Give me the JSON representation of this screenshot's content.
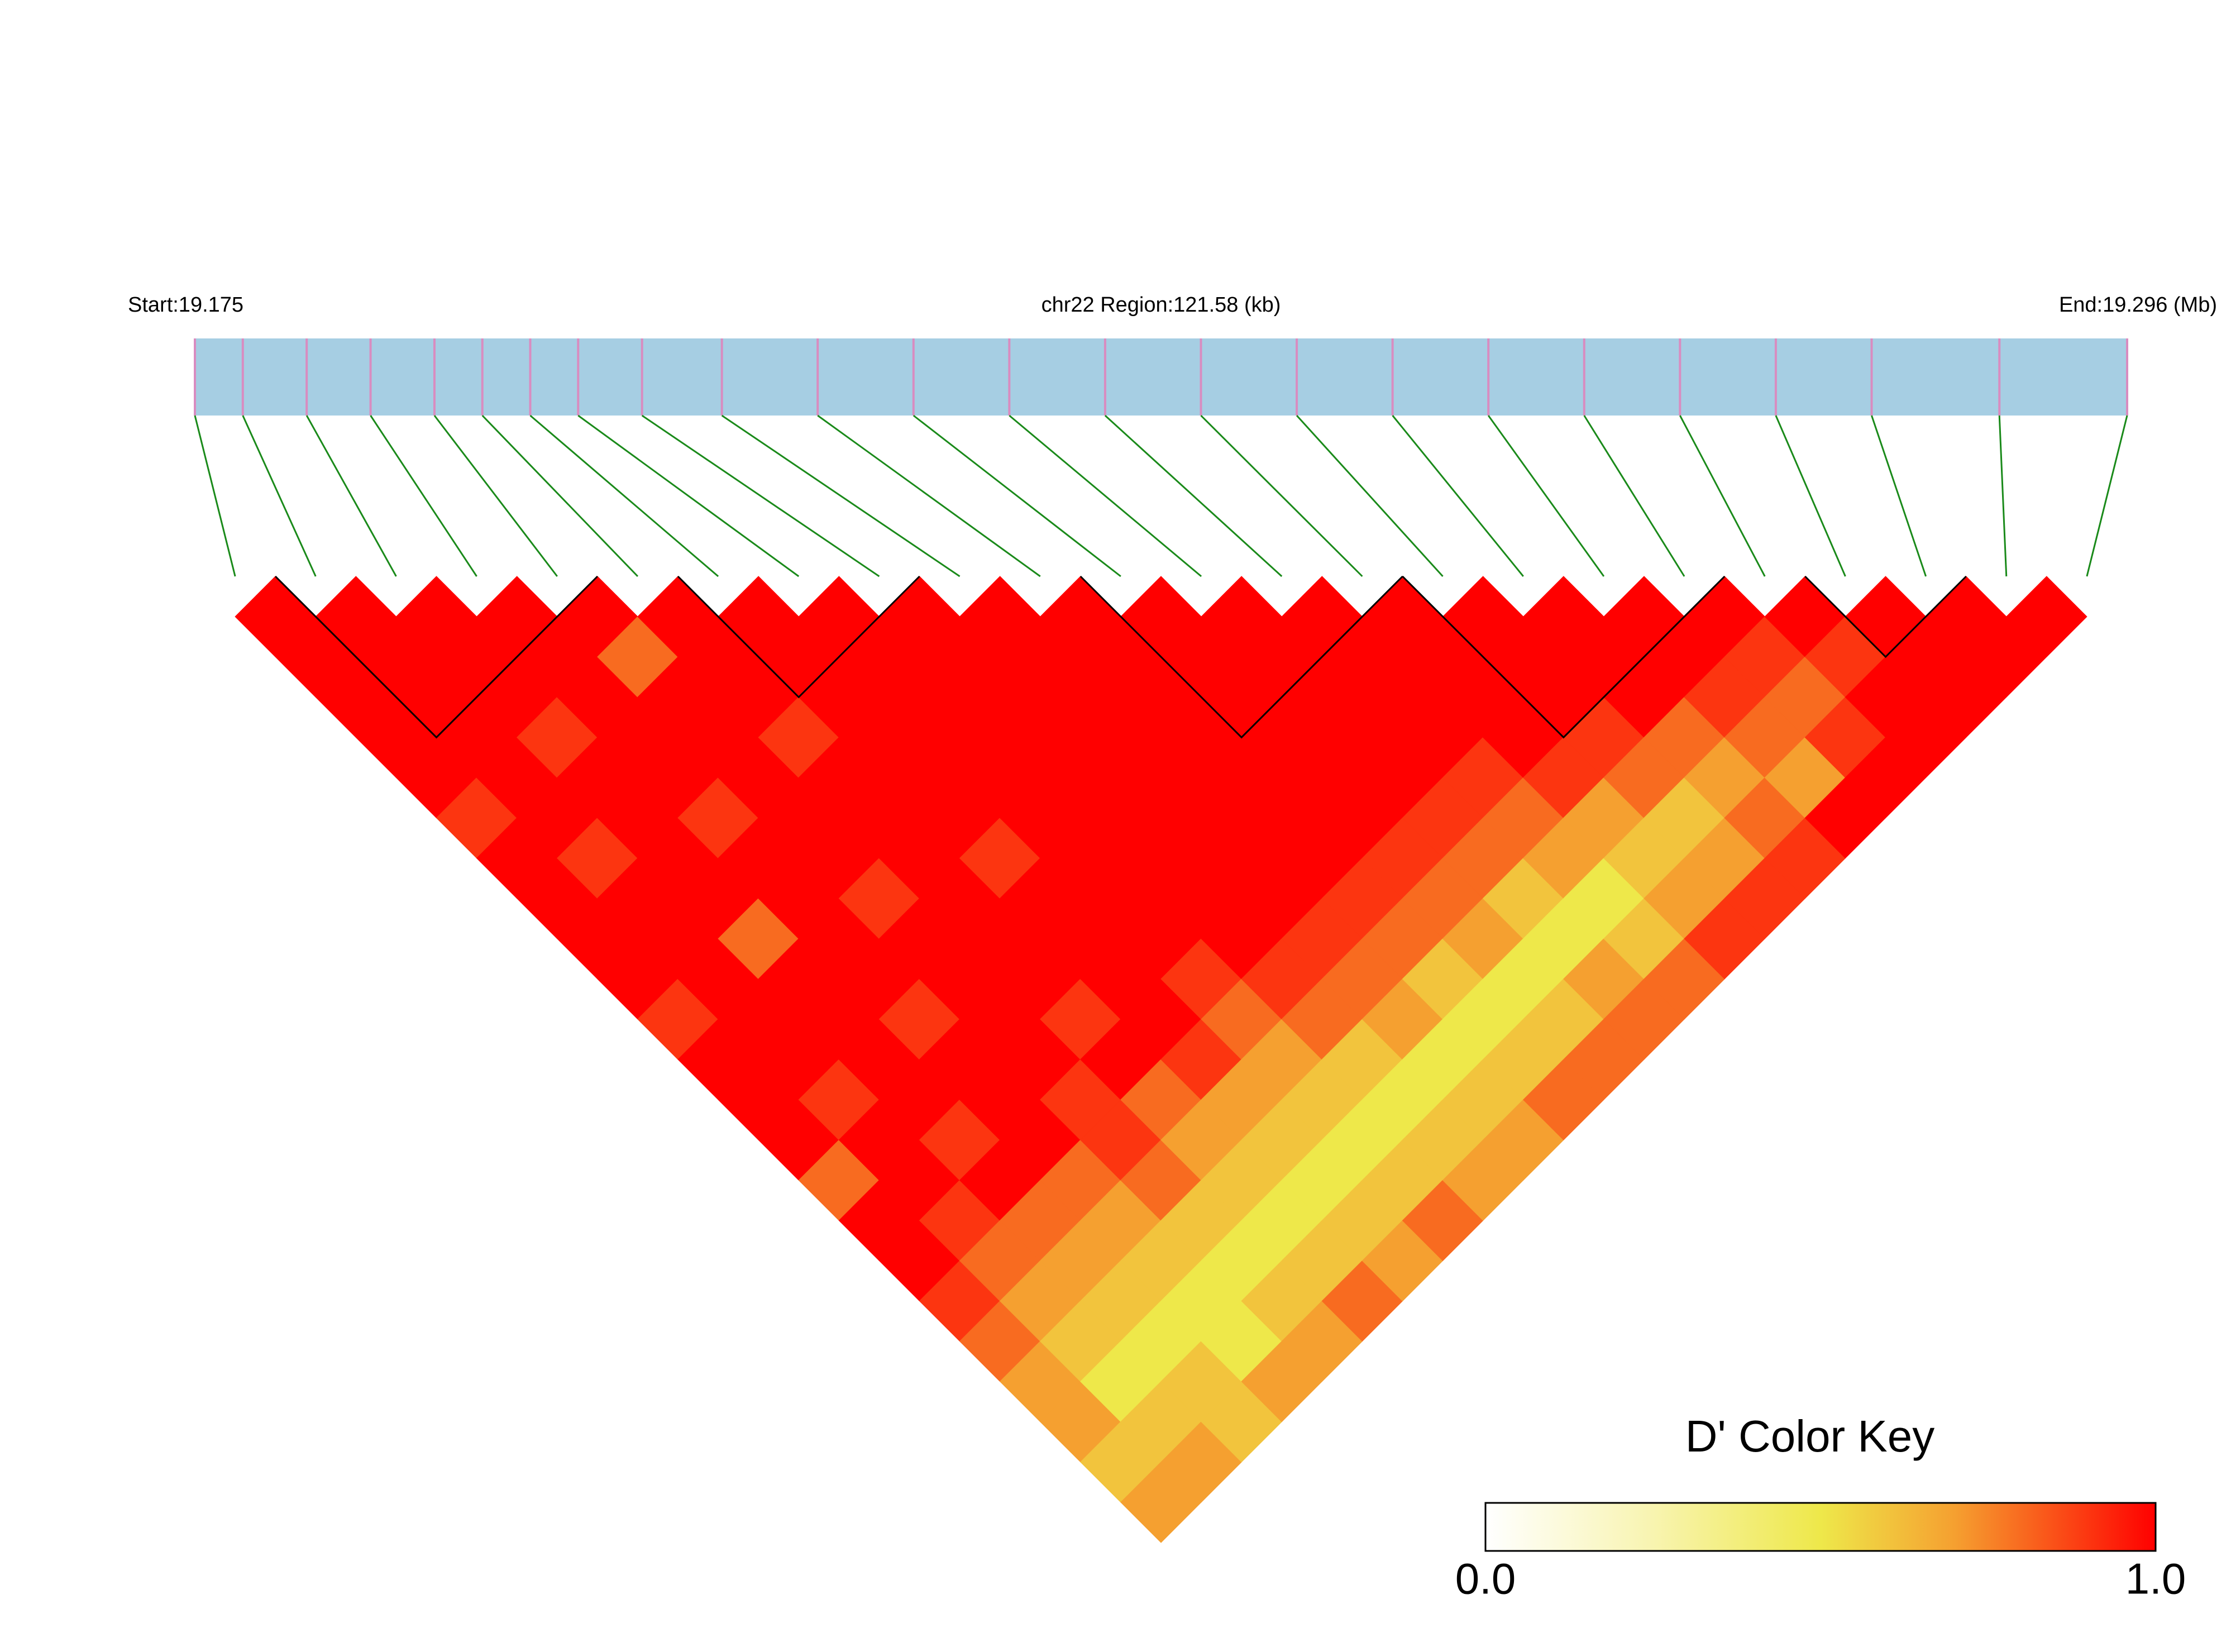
{
  "chart_data": {
    "type": "ld_heatmap",
    "start_label": "Start:19.175",
    "region_label": "chr22 Region:121.58 (kb)",
    "end_label": "End:19.296 (Mb)",
    "xlim": [
      19.175,
      19.296
    ],
    "snp_positions": [
      19.175,
      19.178,
      19.182,
      19.186,
      19.19,
      19.193,
      19.196,
      19.199,
      19.203,
      19.208,
      19.214,
      19.22,
      19.226,
      19.232,
      19.238,
      19.244,
      19.25,
      19.256,
      19.262,
      19.268,
      19.274,
      19.28,
      19.288,
      19.296
    ],
    "track_color": "#a6cee3",
    "snp_color": "#d98cc0",
    "link_color": "#1a8a1a",
    "block_color": "#000000",
    "blocks": [
      [
        1,
        4
      ],
      [
        6,
        8
      ],
      [
        11,
        14
      ],
      [
        15,
        18
      ],
      [
        20,
        21
      ]
    ],
    "values": [
      [
        1,
        1,
        1,
        1,
        1,
        0.9,
        1,
        1,
        1,
        1,
        0.9,
        1,
        1,
        1,
        0.8,
        1,
        1,
        0.9,
        0.8,
        0.7,
        0.7,
        0.6,
        0.7
      ],
      [
        1,
        1,
        1,
        1,
        1,
        1,
        0.9,
        1,
        1,
        1,
        1,
        1,
        0.9,
        1,
        1,
        0.9,
        0.8,
        0.7,
        0.6,
        0.5,
        0.6,
        0.7
      ],
      [
        1,
        1,
        1,
        0.9,
        1,
        1,
        1,
        1,
        0.8,
        1,
        1,
        1,
        1,
        0.9,
        1,
        0.8,
        0.7,
        0.6,
        0.5,
        0.6,
        0.6
      ],
      [
        1,
        1,
        1,
        1,
        1,
        0.9,
        1,
        1,
        1,
        1,
        0.9,
        1,
        1,
        1,
        0.8,
        0.7,
        0.6,
        0.5,
        0.5,
        0.7
      ],
      [
        1,
        0.8,
        1,
        1,
        1,
        1,
        1,
        0.9,
        1,
        1,
        1,
        1,
        0.9,
        0.9,
        0.8,
        0.6,
        0.5,
        0.6,
        0.7
      ],
      [
        1,
        1,
        1,
        0.9,
        1,
        1,
        1,
        1,
        1,
        1,
        0.9,
        1,
        0.8,
        0.7,
        0.6,
        0.5,
        0.6,
        0.8
      ],
      [
        1,
        1,
        1,
        1,
        1,
        1,
        0.9,
        1,
        1,
        1,
        1,
        0.9,
        0.7,
        0.6,
        0.5,
        0.6,
        0.7
      ],
      [
        1,
        1,
        1,
        1,
        1,
        1,
        1,
        1,
        1,
        0.9,
        0.8,
        0.7,
        0.6,
        0.5,
        0.6,
        0.8
      ],
      [
        1,
        1,
        1,
        1,
        1,
        1,
        1,
        1,
        1,
        0.9,
        0.8,
        0.6,
        0.5,
        0.6,
        0.7
      ],
      [
        1,
        1,
        1,
        1,
        1,
        1,
        1,
        1,
        0.9,
        0.8,
        0.7,
        0.5,
        0.6,
        0.7
      ],
      [
        1,
        1,
        1,
        1,
        1,
        1,
        1,
        0.9,
        0.8,
        0.6,
        0.5,
        0.6,
        0.8
      ],
      [
        1,
        1,
        1,
        1,
        1,
        1,
        0.9,
        0.8,
        0.7,
        0.5,
        0.6,
        0.8
      ],
      [
        1,
        1,
        1,
        1,
        1,
        0.9,
        0.8,
        0.6,
        0.5,
        0.7,
        0.8
      ],
      [
        1,
        1,
        1,
        1,
        0.9,
        0.8,
        0.7,
        0.5,
        0.6,
        0.8
      ],
      [
        1,
        1,
        1,
        1,
        0.9,
        0.7,
        0.6,
        0.7,
        0.9
      ],
      [
        1,
        1,
        1,
        0.9,
        0.8,
        0.6,
        0.7,
        0.9
      ],
      [
        1,
        1,
        1,
        0.8,
        0.7,
        0.8,
        0.9
      ],
      [
        1,
        1,
        0.9,
        0.8,
        0.7,
        1
      ],
      [
        1,
        0.9,
        0.8,
        0.9,
        1
      ],
      [
        1,
        0.9,
        1,
        1
      ],
      [
        1,
        1,
        1
      ],
      [
        1,
        1
      ],
      [
        1
      ]
    ],
    "colorbar_title": "D' Color Key",
    "colorbar_lim": [
      0,
      1
    ],
    "colorbar_ticks": [
      {
        "value": 0,
        "label": "0.0"
      },
      {
        "value": 1,
        "label": "1.0"
      }
    ]
  }
}
